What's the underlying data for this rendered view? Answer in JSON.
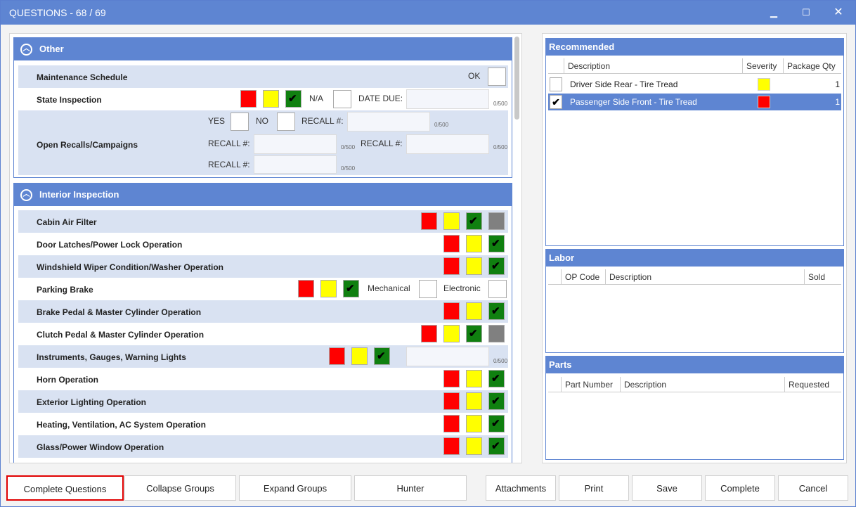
{
  "window": {
    "title": "QUESTIONS - 68 / 69",
    "min_icon": "minimize-icon",
    "max_icon": "maximize-icon",
    "close_icon": "close-icon"
  },
  "colors": {
    "accent": "#5e85d2",
    "red": "#ff0000",
    "yellow": "#ffff00",
    "green": "#108010",
    "gray": "#808080"
  },
  "other": {
    "title": "Other",
    "maintenance_label": "Maintenance Schedule",
    "ok_label": "OK",
    "state_label": "State Inspection",
    "na_label": "N/A",
    "date_due_label": "DATE DUE:",
    "counter": "0/500",
    "recalls_label": "Open Recalls/Campaigns",
    "yes_label": "YES",
    "no_label": "NO",
    "recall_label": "RECALL #:"
  },
  "interior": {
    "title": "Interior Inspection",
    "items": [
      {
        "label": "Cabin Air Filter"
      },
      {
        "label": "Door Latches/Power Lock Operation"
      },
      {
        "label": "Windshield Wiper Condition/Washer Operation"
      },
      {
        "label": "Parking Brake",
        "mechanical": "Mechanical",
        "electronic": "Electronic"
      },
      {
        "label": "Brake Pedal & Master Cylinder Operation"
      },
      {
        "label": "Clutch Pedal & Master Cylinder Operation"
      },
      {
        "label": "Instruments, Gauges, Warning Lights",
        "counter": "0/500"
      },
      {
        "label": "Horn Operation"
      },
      {
        "label": "Exterior Lighting Operation"
      },
      {
        "label": "Heating, Ventilation, AC System Operation"
      },
      {
        "label": "Glass/Power Window Operation"
      }
    ]
  },
  "recommended": {
    "title": "Recommended",
    "columns": [
      "Description",
      "Severity",
      "Package Qty"
    ],
    "rows": [
      {
        "description": "Driver Side Rear - Tire Tread",
        "severity": "#ffff00",
        "qty": "1",
        "selected": false
      },
      {
        "description": "Passenger Side Front - Tire Tread",
        "severity": "#ff0000",
        "qty": "1",
        "selected": true
      }
    ],
    "check": "✔"
  },
  "labor": {
    "title": "Labor",
    "columns": [
      "OP Code",
      "Description",
      "Sold"
    ]
  },
  "parts": {
    "title": "Parts",
    "columns": [
      "Part Number",
      "Description",
      "Requested"
    ]
  },
  "buttons": {
    "complete_questions": "Complete Questions",
    "collapse": "Collapse Groups",
    "expand": "Expand Groups",
    "hunter": "Hunter",
    "attachments": "Attachments",
    "print": "Print",
    "save": "Save",
    "complete": "Complete",
    "cancel": "Cancel"
  }
}
